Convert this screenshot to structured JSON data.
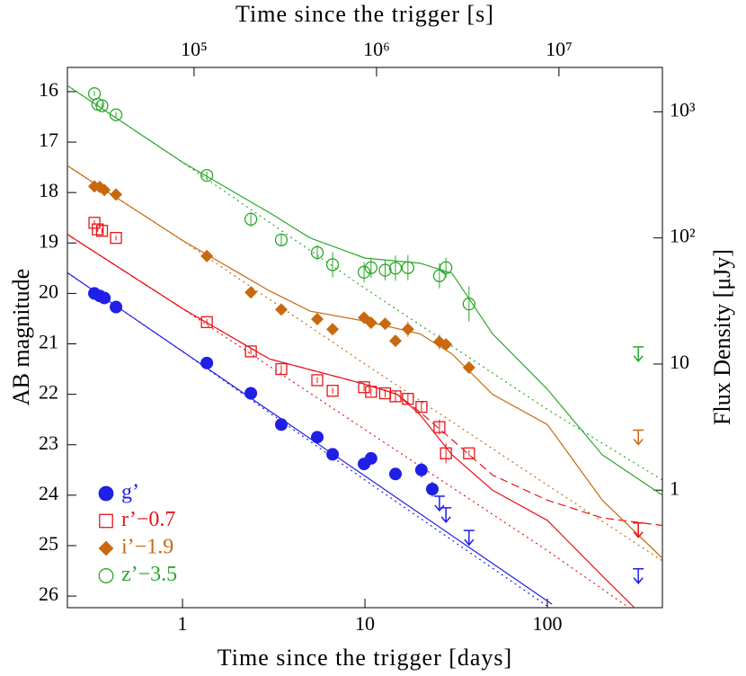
{
  "chart_data": {
    "type": "scatter",
    "x_label": "Time since the trigger [days]",
    "x2_label": "Time since the trigger [s]",
    "y_label": "AB magnitude",
    "y2_label": "Flux Density [μJy]",
    "log_x": true,
    "log_x2": true,
    "log_y2": true,
    "xlim": [
      0.234,
      427
    ],
    "xticks": [
      1,
      10,
      100
    ],
    "x2lim": [
      20218,
      36900000
    ],
    "x2ticks": [
      {
        "value": 100000,
        "label": "10⁵"
      },
      {
        "value": 1000000,
        "label": "10⁶"
      },
      {
        "value": 10000000,
        "label": "10⁷"
      }
    ],
    "ylim": [
      26.23,
      15.52
    ],
    "yticks": [
      16,
      17,
      18,
      19,
      20,
      21,
      22,
      23,
      24,
      25,
      26
    ],
    "y2lim": [
      0.117,
      2249
    ],
    "y2ticks": [
      1,
      10,
      {
        "value": 100,
        "label": "10²"
      },
      {
        "value": 1000,
        "label": "10³"
      }
    ],
    "legend": "lower left",
    "series": [
      {
        "name": "g’",
        "color": "#1f1fe6",
        "marker": "filled-circle",
        "x": [
          0.329,
          0.352,
          0.373,
          0.432,
          1.36,
          2.37,
          3.48,
          5.48,
          6.65,
          9.89,
          10.8,
          14.7,
          20.4,
          23.4
        ],
        "values": [
          20.0,
          20.05,
          20.09,
          20.27,
          21.38,
          21.98,
          22.6,
          22.85,
          23.19,
          23.38,
          23.27,
          23.58,
          23.5,
          23.88
        ],
        "errors": [
          0.05,
          0.05,
          0.05,
          0.05,
          0.05,
          0.12,
          0.12,
          0.05,
          0.05,
          0.08,
          0.08,
          0.08,
          0.15,
          0.15
        ],
        "upper_limits": {
          "x": [
            25.6,
            27.8,
            37.2,
            315
          ],
          "values": [
            24.02,
            24.25,
            24.7,
            25.46
          ]
        }
      },
      {
        "name": "r’−0.7",
        "color": "#e8141b",
        "marker": "open-square",
        "x": [
          0.329,
          0.343,
          0.362,
          0.432,
          1.36,
          2.37,
          3.48,
          5.48,
          6.65,
          9.89,
          10.8,
          12.9,
          14.7,
          17.2,
          20.4,
          25.6,
          27.8,
          37.2
        ],
        "values": [
          18.6,
          18.73,
          18.76,
          18.9,
          20.57,
          21.15,
          21.5,
          21.72,
          21.93,
          21.86,
          21.95,
          21.98,
          22.04,
          22.09,
          22.25,
          22.65,
          23.17,
          23.17
        ],
        "errors": [
          0.05,
          0.05,
          0.05,
          0.05,
          0.06,
          0.06,
          0.08,
          0.06,
          0.06,
          0.08,
          0.08,
          0.08,
          0.1,
          0.1,
          0.1,
          0.15,
          0.2,
          0.06
        ],
        "upper_limits": {
          "x": [
            315
          ],
          "values": [
            24.55
          ]
        }
      },
      {
        "name": "i’−1.9",
        "color": "#c8690f",
        "marker": "filled-diamond",
        "x": [
          0.329,
          0.352,
          0.373,
          0.432,
          1.36,
          2.37,
          3.48,
          5.48,
          6.65,
          9.89,
          10.8,
          12.9,
          14.7,
          17.2,
          25.6,
          27.8,
          37.2
        ],
        "values": [
          17.88,
          17.89,
          17.95,
          18.04,
          19.26,
          19.98,
          20.32,
          20.51,
          20.71,
          20.48,
          20.58,
          20.6,
          20.94,
          20.71,
          20.96,
          21.01,
          21.47
        ],
        "errors": [
          0.05,
          0.05,
          0.05,
          0.05,
          0.05,
          0.06,
          0.06,
          0.06,
          0.06,
          0.06,
          0.08,
          0.06,
          0.12,
          0.15,
          0.15,
          0.1,
          0.12
        ],
        "upper_limits": {
          "x": [
            315
          ],
          "values": [
            22.71
          ]
        }
      },
      {
        "name": "z’−3.5",
        "color": "#2aa82a",
        "marker": "open-circle",
        "x": [
          0.329,
          0.343,
          0.362,
          0.432,
          1.36,
          2.37,
          3.48,
          5.48,
          6.65,
          9.89,
          10.8,
          12.9,
          14.7,
          17.2,
          25.6,
          27.8,
          37.2
        ],
        "values": [
          16.04,
          16.25,
          16.28,
          16.46,
          17.66,
          18.53,
          18.94,
          19.19,
          19.43,
          19.58,
          19.49,
          19.54,
          19.5,
          19.49,
          19.65,
          19.49,
          20.21
        ],
        "errors": [
          0.05,
          0.05,
          0.05,
          0.05,
          0.08,
          0.15,
          0.12,
          0.15,
          0.25,
          0.2,
          0.2,
          0.2,
          0.25,
          0.25,
          0.25,
          0.2,
          0.35
        ],
        "upper_limits": {
          "x": [
            315
          ],
          "values": [
            21.06
          ]
        }
      }
    ],
    "models": [
      {
        "color": "#1f1fe6",
        "style": "solid",
        "x": [
          0.234,
          1,
          10,
          106
        ],
        "values": [
          19.59,
          21.15,
          23.62,
          26.16
        ]
      },
      {
        "color": "#1f1fe6",
        "style": "dotted",
        "x": [
          0.234,
          1,
          10,
          100
        ],
        "values": [
          19.59,
          21.15,
          23.7,
          26.2
        ]
      },
      {
        "color": "#e8141b",
        "style": "solid",
        "x": [
          0.234,
          1,
          3,
          10,
          15,
          20,
          30,
          50,
          100,
          200,
          300
        ],
        "values": [
          18.83,
          20.3,
          21.3,
          21.8,
          22.0,
          22.4,
          23.2,
          23.9,
          24.5,
          25.6,
          26.23
        ]
      },
      {
        "color": "#e8141b",
        "style": "dashed",
        "x": [
          0.234,
          1,
          3,
          10,
          15,
          20,
          30,
          50,
          100,
          200,
          427
        ],
        "values": [
          18.83,
          20.3,
          21.3,
          21.8,
          22.0,
          22.35,
          22.9,
          23.6,
          24.1,
          24.45,
          24.6
        ]
      },
      {
        "color": "#e8141b",
        "style": "dotted",
        "x": [
          0.234,
          1,
          10,
          100,
          280
        ],
        "values": [
          18.83,
          20.3,
          22.7,
          25.1,
          26.23
        ]
      },
      {
        "color": "#c8690f",
        "style": "solid",
        "x": [
          0.234,
          1,
          3,
          5,
          10,
          20,
          30,
          50,
          100,
          200,
          427
        ],
        "values": [
          17.47,
          18.95,
          19.95,
          20.35,
          20.55,
          20.8,
          21.2,
          22.0,
          22.6,
          24.1,
          25.25
        ]
      },
      {
        "color": "#c8690f",
        "style": "dotted",
        "x": [
          0.234,
          1,
          10,
          100,
          427
        ],
        "values": [
          17.47,
          18.95,
          21.4,
          23.8,
          25.3
        ]
      },
      {
        "color": "#2aa82a",
        "style": "solid",
        "x": [
          0.234,
          1,
          3,
          5,
          10,
          20,
          30,
          50,
          100,
          200,
          427
        ],
        "values": [
          15.88,
          17.4,
          18.4,
          18.9,
          19.3,
          19.4,
          19.6,
          20.8,
          21.9,
          23.2,
          24.0
        ]
      },
      {
        "color": "#2aa82a",
        "style": "dotted",
        "x": [
          0.234,
          1,
          10,
          100,
          427
        ],
        "values": [
          15.88,
          17.4,
          19.9,
          22.3,
          23.7
        ]
      }
    ]
  }
}
